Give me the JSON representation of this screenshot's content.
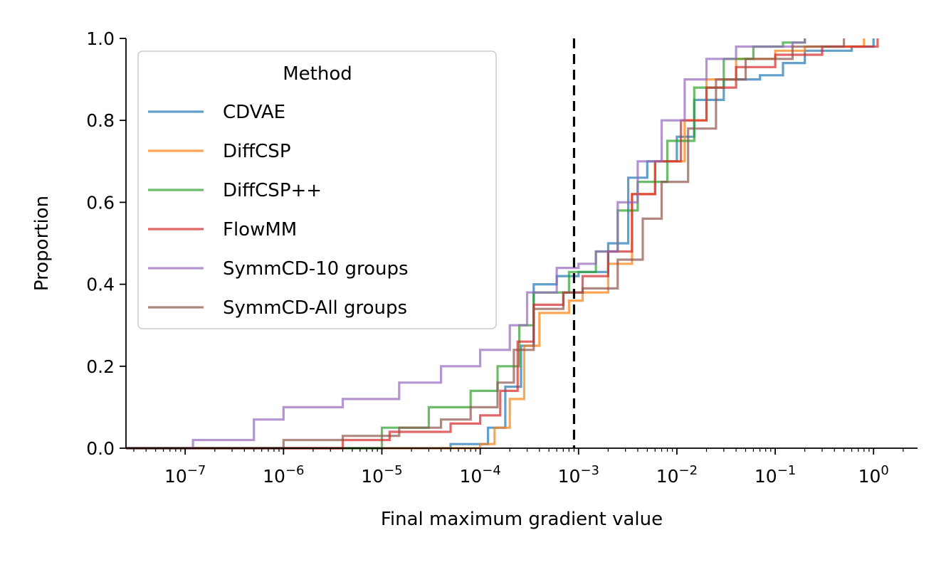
{
  "chart_data": {
    "type": "line",
    "subtype": "ecdf-step",
    "title": "",
    "xlabel": "Final maximum gradient value",
    "ylabel": "Proportion",
    "xscale": "log",
    "xlim": [
      2.5e-08,
      2.8
    ],
    "ylim": [
      0,
      1
    ],
    "x_ticks": [
      {
        "value": 1e-07,
        "base": "10",
        "exp": "−7"
      },
      {
        "value": 1e-06,
        "base": "10",
        "exp": "−6"
      },
      {
        "value": 1e-05,
        "base": "10",
        "exp": "−5"
      },
      {
        "value": 0.0001,
        "base": "10",
        "exp": "−4"
      },
      {
        "value": 0.001,
        "base": "10",
        "exp": "−3"
      },
      {
        "value": 0.01,
        "base": "10",
        "exp": "−2"
      },
      {
        "value": 0.1,
        "base": "10",
        "exp": "−1"
      },
      {
        "value": 1,
        "base": "10",
        "exp": "0"
      }
    ],
    "y_ticks": [
      {
        "value": 0.0,
        "label": "0.0"
      },
      {
        "value": 0.2,
        "label": "0.2"
      },
      {
        "value": 0.4,
        "label": "0.4"
      },
      {
        "value": 0.6,
        "label": "0.6"
      },
      {
        "value": 0.8,
        "label": "0.8"
      },
      {
        "value": 1.0,
        "label": "1.0"
      }
    ],
    "reference_line": {
      "x": 0.0009,
      "style": "dashed",
      "color": "#000000"
    },
    "legend": {
      "title": "Method",
      "position": "upper-left"
    },
    "series": [
      {
        "name": "CDVAE",
        "color": "#1f77b4",
        "points": [
          [
            1e-05,
            0
          ],
          [
            5e-05,
            0.01
          ],
          [
            0.00012,
            0.05
          ],
          [
            0.00018,
            0.15
          ],
          [
            0.00026,
            0.25
          ],
          [
            0.00035,
            0.4
          ],
          [
            0.0006,
            0.42
          ],
          [
            0.001,
            0.43
          ],
          [
            0.002,
            0.5
          ],
          [
            0.0032,
            0.66
          ],
          [
            0.005,
            0.7
          ],
          [
            0.01,
            0.76
          ],
          [
            0.015,
            0.85
          ],
          [
            0.03,
            0.9
          ],
          [
            0.07,
            0.91
          ],
          [
            0.12,
            0.94
          ],
          [
            0.2,
            0.97
          ],
          [
            0.6,
            0.98
          ],
          [
            1.0,
            1.0
          ]
        ]
      },
      {
        "name": "DiffCSP",
        "color": "#ff7f0e",
        "points": [
          [
            1e-05,
            0
          ],
          [
            0.0001,
            0.01
          ],
          [
            0.00014,
            0.05
          ],
          [
            0.0002,
            0.12
          ],
          [
            0.00028,
            0.25
          ],
          [
            0.0004,
            0.33
          ],
          [
            0.0008,
            0.36
          ],
          [
            0.0011,
            0.38
          ],
          [
            0.002,
            0.45
          ],
          [
            0.0035,
            0.62
          ],
          [
            0.006,
            0.7
          ],
          [
            0.012,
            0.8
          ],
          [
            0.02,
            0.9
          ],
          [
            0.04,
            0.95
          ],
          [
            0.1,
            0.97
          ],
          [
            0.2,
            0.98
          ],
          [
            0.8,
            1.0
          ]
        ]
      },
      {
        "name": "DiffCSP++",
        "color": "#2ca02c",
        "points": [
          [
            5e-06,
            0
          ],
          [
            1e-05,
            0.05
          ],
          [
            3e-05,
            0.1
          ],
          [
            8e-05,
            0.14
          ],
          [
            0.00015,
            0.2
          ],
          [
            0.00025,
            0.3
          ],
          [
            0.00035,
            0.38
          ],
          [
            0.0008,
            0.43
          ],
          [
            0.0015,
            0.48
          ],
          [
            0.0025,
            0.58
          ],
          [
            0.004,
            0.65
          ],
          [
            0.008,
            0.75
          ],
          [
            0.015,
            0.88
          ],
          [
            0.03,
            0.95
          ],
          [
            0.06,
            0.98
          ],
          [
            0.12,
            0.99
          ],
          [
            0.2,
            1.0
          ]
        ]
      },
      {
        "name": "FlowMM",
        "color": "#d62728",
        "points": [
          [
            1.5e-06,
            0
          ],
          [
            4e-06,
            0.02
          ],
          [
            1.2e-05,
            0.04
          ],
          [
            5e-05,
            0.06
          ],
          [
            0.0001,
            0.08
          ],
          [
            0.00016,
            0.14
          ],
          [
            0.00024,
            0.26
          ],
          [
            0.00035,
            0.35
          ],
          [
            0.0007,
            0.38
          ],
          [
            0.0011,
            0.42
          ],
          [
            0.002,
            0.48
          ],
          [
            0.0035,
            0.62
          ],
          [
            0.006,
            0.7
          ],
          [
            0.011,
            0.8
          ],
          [
            0.02,
            0.88
          ],
          [
            0.04,
            0.93
          ],
          [
            0.1,
            0.96
          ],
          [
            0.3,
            0.98
          ],
          [
            1.1,
            1.0
          ]
        ]
      },
      {
        "name": "SymmCD-10 groups",
        "color": "#9467bd",
        "points": [
          [
            5e-08,
            0
          ],
          [
            1.2e-07,
            0.02
          ],
          [
            5e-07,
            0.07
          ],
          [
            1e-06,
            0.1
          ],
          [
            4e-06,
            0.12
          ],
          [
            1.5e-05,
            0.16
          ],
          [
            4e-05,
            0.2
          ],
          [
            0.0001,
            0.24
          ],
          [
            0.0002,
            0.3
          ],
          [
            0.0003,
            0.38
          ],
          [
            0.0006,
            0.44
          ],
          [
            0.001,
            0.45
          ],
          [
            0.0015,
            0.48
          ],
          [
            0.0025,
            0.6
          ],
          [
            0.004,
            0.7
          ],
          [
            0.007,
            0.8
          ],
          [
            0.012,
            0.9
          ],
          [
            0.02,
            0.95
          ],
          [
            0.04,
            0.98
          ],
          [
            0.15,
            0.99
          ],
          [
            0.2,
            1.0
          ]
        ]
      },
      {
        "name": "SymmCD-All groups",
        "color": "#8c564b",
        "points": [
          [
            7e-07,
            0
          ],
          [
            1e-06,
            0.02
          ],
          [
            4e-06,
            0.03
          ],
          [
            1.5e-05,
            0.05
          ],
          [
            4e-05,
            0.07
          ],
          [
            8e-05,
            0.1
          ],
          [
            0.00015,
            0.16
          ],
          [
            0.00022,
            0.24
          ],
          [
            0.00035,
            0.34
          ],
          [
            0.0007,
            0.38
          ],
          [
            0.0011,
            0.39
          ],
          [
            0.0025,
            0.46
          ],
          [
            0.0045,
            0.56
          ],
          [
            0.007,
            0.65
          ],
          [
            0.013,
            0.78
          ],
          [
            0.025,
            0.9
          ],
          [
            0.05,
            0.95
          ],
          [
            0.15,
            0.98
          ],
          [
            0.5,
            1.0
          ]
        ]
      }
    ]
  }
}
